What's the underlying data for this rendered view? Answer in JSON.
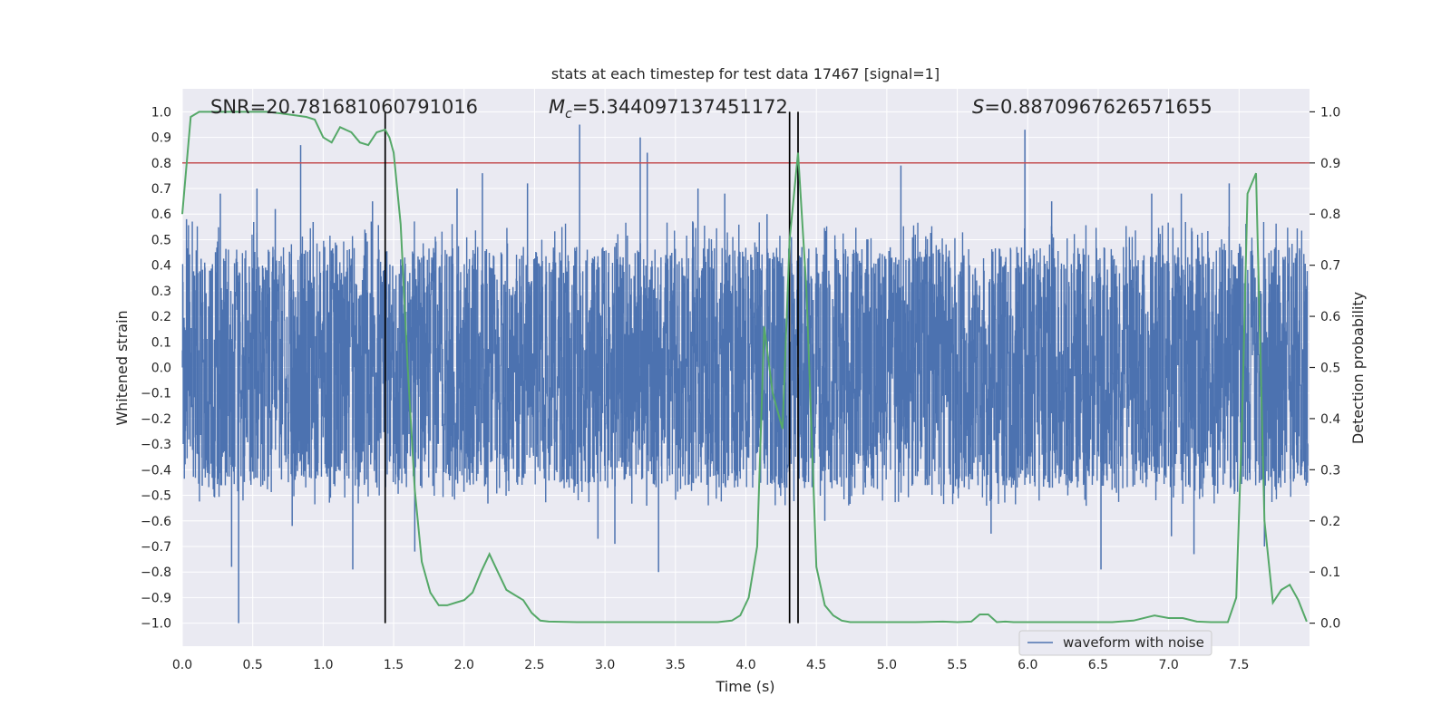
{
  "chart_data": {
    "type": "line",
    "title": "stats at each timestep for test data 17467 [signal=1]",
    "xlabel": "Time (s)",
    "ylabel": "Whitened strain",
    "y2label": "Detection probability",
    "xlim": [
      0.0,
      8.0
    ],
    "ylim": [
      -1.09,
      1.09
    ],
    "y2lim": [
      -0.045,
      1.045
    ],
    "xticks": [
      "0.0",
      "0.5",
      "1.0",
      "1.5",
      "2.0",
      "2.5",
      "3.0",
      "3.5",
      "4.0",
      "4.5",
      "5.0",
      "5.5",
      "6.0",
      "6.5",
      "7.0",
      "7.5"
    ],
    "xtick_values": [
      0.0,
      0.5,
      1.0,
      1.5,
      2.0,
      2.5,
      3.0,
      3.5,
      4.0,
      4.5,
      5.0,
      5.5,
      6.0,
      6.5,
      7.0,
      7.5
    ],
    "yticks": [
      "1.0",
      "0.9",
      "0.8",
      "0.7",
      "0.6",
      "0.5",
      "0.4",
      "0.3",
      "0.2",
      "0.1",
      "0.0",
      "−0.1",
      "−0.2",
      "−0.3",
      "−0.4",
      "−0.5",
      "−0.6",
      "−0.7",
      "−0.8",
      "−0.9",
      "−1.0"
    ],
    "ytick_values": [
      1.0,
      0.9,
      0.8,
      0.7,
      0.6,
      0.5,
      0.4,
      0.3,
      0.2,
      0.1,
      0.0,
      -0.1,
      -0.2,
      -0.3,
      -0.4,
      -0.5,
      -0.6,
      -0.7,
      -0.8,
      -0.9,
      -1.0
    ],
    "y2ticks": [
      "1.0",
      "0.9",
      "0.8",
      "0.7",
      "0.6",
      "0.5",
      "0.4",
      "0.3",
      "0.2",
      "0.1",
      "0.0"
    ],
    "y2tick_values": [
      1.0,
      0.9,
      0.8,
      0.7,
      0.6,
      0.5,
      0.4,
      0.3,
      0.2,
      0.1,
      0.0
    ],
    "grid": true,
    "legend": {
      "position": "lower-right",
      "entries": [
        "waveform with noise"
      ]
    },
    "annotations": {
      "snr": "SNR=20.781681060791016",
      "mc_symbol": "M",
      "mc_sub": "c",
      "mc_value": "=5.344097137451172",
      "s_symbol": "S",
      "s_value": "=0.8870967626571655"
    },
    "threshold": 0.9,
    "vlines": [
      1.44,
      4.31,
      4.37
    ],
    "series": [
      {
        "name": "waveform with noise",
        "color": "#4c72b0",
        "sample_rate": 512,
        "duration": 7.99,
        "envelope": {
          "typical_positive": 0.45,
          "typical_negative": -0.42,
          "core": 0.32
        },
        "spikes": [
          {
            "t": 0.03,
            "v": 0.58
          },
          {
            "t": 0.27,
            "v": 0.68
          },
          {
            "t": 0.35,
            "v": -0.78
          },
          {
            "t": 0.4,
            "v": -1.0
          },
          {
            "t": 0.53,
            "v": 0.7
          },
          {
            "t": 0.66,
            "v": 0.62
          },
          {
            "t": 0.84,
            "v": 0.87
          },
          {
            "t": 0.78,
            "v": -0.62
          },
          {
            "t": 1.21,
            "v": -0.79
          },
          {
            "t": 1.35,
            "v": 0.65
          },
          {
            "t": 1.65,
            "v": -0.72
          },
          {
            "t": 1.95,
            "v": 0.7
          },
          {
            "t": 2.13,
            "v": 0.76
          },
          {
            "t": 2.45,
            "v": 0.72
          },
          {
            "t": 2.82,
            "v": 0.95
          },
          {
            "t": 2.95,
            "v": -0.67
          },
          {
            "t": 3.07,
            "v": -0.69
          },
          {
            "t": 3.25,
            "v": 0.9
          },
          {
            "t": 3.3,
            "v": 0.84
          },
          {
            "t": 3.38,
            "v": -0.8
          },
          {
            "t": 3.66,
            "v": 0.7
          },
          {
            "t": 3.85,
            "v": 0.68
          },
          {
            "t": 4.15,
            "v": 0.6
          },
          {
            "t": 4.37,
            "v": 0.8
          },
          {
            "t": 4.56,
            "v": -0.6
          },
          {
            "t": 5.1,
            "v": 0.79
          },
          {
            "t": 5.74,
            "v": -0.65
          },
          {
            "t": 5.98,
            "v": 0.93
          },
          {
            "t": 6.17,
            "v": 0.65
          },
          {
            "t": 6.52,
            "v": -0.79
          },
          {
            "t": 6.88,
            "v": 0.68
          },
          {
            "t": 7.02,
            "v": -0.66
          },
          {
            "t": 7.09,
            "v": 0.68
          },
          {
            "t": 7.18,
            "v": -0.73
          },
          {
            "t": 7.43,
            "v": 0.72
          },
          {
            "t": 7.68,
            "v": -0.7
          }
        ]
      },
      {
        "name": "detection probability",
        "color": "#55a868",
        "axis": "right",
        "x": [
          0.0,
          0.06,
          0.12,
          0.2,
          0.3,
          0.4,
          0.5,
          0.6,
          0.7,
          0.8,
          0.88,
          0.94,
          1.0,
          1.06,
          1.12,
          1.2,
          1.26,
          1.32,
          1.38,
          1.44,
          1.47,
          1.5,
          1.55,
          1.6,
          1.65,
          1.7,
          1.76,
          1.82,
          1.88,
          1.94,
          2.0,
          2.06,
          2.12,
          2.18,
          2.24,
          2.3,
          2.36,
          2.42,
          2.48,
          2.54,
          2.6,
          2.8,
          3.0,
          3.2,
          3.4,
          3.6,
          3.8,
          3.9,
          3.96,
          4.02,
          4.08,
          4.13,
          4.19,
          4.26,
          4.31,
          4.37,
          4.43,
          4.5,
          4.56,
          4.62,
          4.68,
          4.74,
          4.8,
          5.0,
          5.2,
          5.4,
          5.5,
          5.6,
          5.66,
          5.72,
          5.78,
          5.84,
          5.9,
          6.0,
          6.2,
          6.4,
          6.6,
          6.75,
          6.9,
          7.0,
          7.1,
          7.2,
          7.3,
          7.42,
          7.48,
          7.52,
          7.56,
          7.62,
          7.68,
          7.74,
          7.8,
          7.86,
          7.92,
          7.98
        ],
        "y": [
          0.8,
          0.99,
          1.0,
          1.0,
          1.0,
          1.0,
          1.0,
          1.0,
          0.997,
          0.993,
          0.99,
          0.985,
          0.95,
          0.94,
          0.97,
          0.96,
          0.94,
          0.935,
          0.96,
          0.965,
          0.95,
          0.92,
          0.78,
          0.5,
          0.26,
          0.12,
          0.06,
          0.035,
          0.035,
          0.04,
          0.045,
          0.06,
          0.1,
          0.135,
          0.1,
          0.065,
          0.055,
          0.045,
          0.02,
          0.005,
          0.003,
          0.002,
          0.002,
          0.002,
          0.002,
          0.002,
          0.002,
          0.005,
          0.015,
          0.05,
          0.15,
          0.58,
          0.45,
          0.38,
          0.75,
          0.92,
          0.65,
          0.11,
          0.035,
          0.015,
          0.005,
          0.002,
          0.002,
          0.002,
          0.002,
          0.003,
          0.002,
          0.003,
          0.017,
          0.017,
          0.002,
          0.003,
          0.002,
          0.002,
          0.002,
          0.002,
          0.002,
          0.005,
          0.015,
          0.01,
          0.01,
          0.003,
          0.002,
          0.002,
          0.05,
          0.38,
          0.84,
          0.88,
          0.2,
          0.04,
          0.065,
          0.075,
          0.045,
          0.003
        ]
      }
    ]
  }
}
